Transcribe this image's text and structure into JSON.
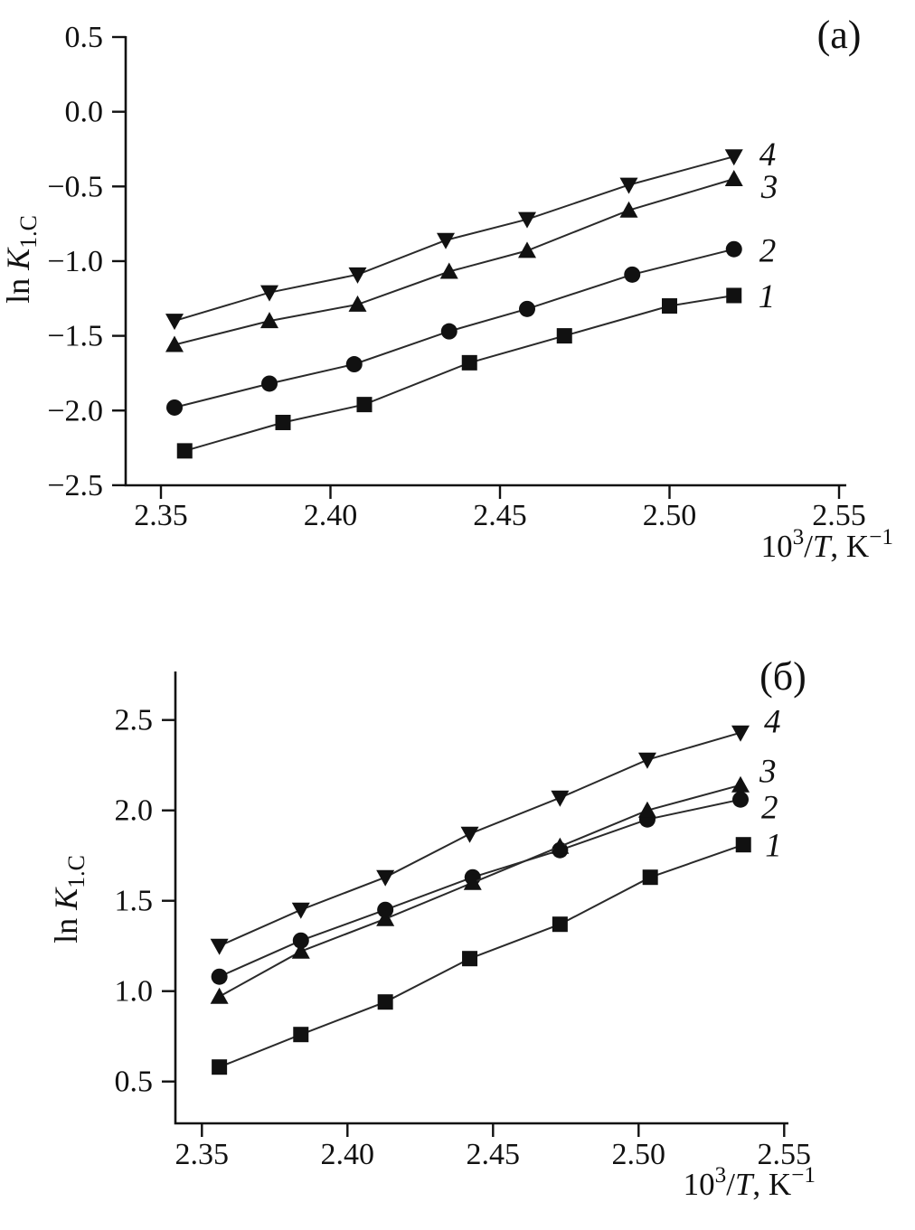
{
  "figure": {
    "background": "#ffffff",
    "ink": "#111111",
    "series_line_color": "#2a2a2a"
  },
  "axis_labels": {
    "y_prefix": "ln",
    "y_symbol": "K",
    "y_subscript": "1.C",
    "x_base": "10",
    "x_exponent": "3",
    "x_slash": "/",
    "x_symbol": "T",
    "x_suffix": ", K",
    "x_superscript": "−1"
  },
  "chart_data": [
    {
      "type": "line",
      "panel_label": "(a)",
      "xlabel": "10^3/T, K^-1",
      "ylabel": "ln K_1.C",
      "xlim": [
        2.34,
        2.555
      ],
      "ylim": [
        -2.5,
        0.5
      ],
      "grid": false,
      "legend_position": "right-of-last-point",
      "x_tick_labels": [
        "2.35",
        "2.40",
        "2.45",
        "2.50",
        "2.55"
      ],
      "x_tick_values": [
        2.35,
        2.4,
        2.45,
        2.5,
        2.55
      ],
      "y_tick_labels": [
        "0.5",
        "0.0",
        "−0.5",
        "−1.0",
        "−1.5",
        "−2.0",
        "−2.5"
      ],
      "y_tick_values": [
        0.5,
        0.0,
        -0.5,
        -1.0,
        -1.5,
        -2.0,
        -2.5
      ],
      "series": [
        {
          "name": "1",
          "marker": "square",
          "x": [
            2.357,
            2.386,
            2.41,
            2.441,
            2.469,
            2.5,
            2.519
          ],
          "y": [
            -2.27,
            -2.08,
            -1.96,
            -1.68,
            -1.5,
            -1.3,
            -1.23
          ]
        },
        {
          "name": "2",
          "marker": "circle",
          "x": [
            2.354,
            2.382,
            2.407,
            2.435,
            2.458,
            2.489,
            2.519
          ],
          "y": [
            -1.98,
            -1.82,
            -1.69,
            -1.47,
            -1.32,
            -1.09,
            -0.92
          ]
        },
        {
          "name": "3",
          "marker": "triangle-up",
          "x": [
            2.354,
            2.382,
            2.408,
            2.435,
            2.458,
            2.488,
            2.519
          ],
          "y": [
            -1.56,
            -1.4,
            -1.29,
            -1.07,
            -0.93,
            -0.66,
            -0.45
          ]
        },
        {
          "name": "4",
          "marker": "triangle-down",
          "x": [
            2.354,
            2.382,
            2.408,
            2.434,
            2.458,
            2.488,
            2.519
          ],
          "y": [
            -1.4,
            -1.21,
            -1.09,
            -0.86,
            -0.72,
            -0.49,
            -0.3
          ]
        }
      ]
    },
    {
      "type": "line",
      "panel_label": "(б)",
      "xlabel": "10^3/T, K^-1",
      "ylabel": "ln K_1.C",
      "xlim": [
        2.34,
        2.555
      ],
      "ylim": [
        0.25,
        2.75
      ],
      "grid": false,
      "legend_position": "right-of-last-point",
      "x_tick_labels": [
        "2.35",
        "2.40",
        "2.45",
        "2.50",
        "2.55"
      ],
      "x_tick_values": [
        2.35,
        2.4,
        2.45,
        2.5,
        2.55
      ],
      "y_tick_labels": [
        "2.5",
        "2.0",
        "1.5",
        "1.0",
        "0.5"
      ],
      "y_tick_values": [
        2.5,
        2.0,
        1.5,
        1.0,
        0.5
      ],
      "series": [
        {
          "name": "1",
          "marker": "square",
          "x": [
            2.356,
            2.384,
            2.413,
            2.442,
            2.473,
            2.504,
            2.536
          ],
          "y": [
            0.58,
            0.76,
            0.94,
            1.18,
            1.37,
            1.63,
            1.81
          ]
        },
        {
          "name": "2",
          "marker": "circle",
          "x": [
            2.356,
            2.384,
            2.413,
            2.443,
            2.473,
            2.503,
            2.535
          ],
          "y": [
            1.08,
            1.28,
            1.45,
            1.63,
            1.78,
            1.95,
            2.06
          ]
        },
        {
          "name": "3",
          "marker": "triangle-up",
          "x": [
            2.356,
            2.384,
            2.413,
            2.443,
            2.473,
            2.503,
            2.535
          ],
          "y": [
            0.97,
            1.22,
            1.4,
            1.6,
            1.8,
            2.0,
            2.14
          ]
        },
        {
          "name": "4",
          "marker": "triangle-down",
          "x": [
            2.356,
            2.384,
            2.413,
            2.442,
            2.473,
            2.503,
            2.535
          ],
          "y": [
            1.25,
            1.45,
            1.63,
            1.87,
            2.07,
            2.28,
            2.43
          ]
        }
      ]
    }
  ]
}
